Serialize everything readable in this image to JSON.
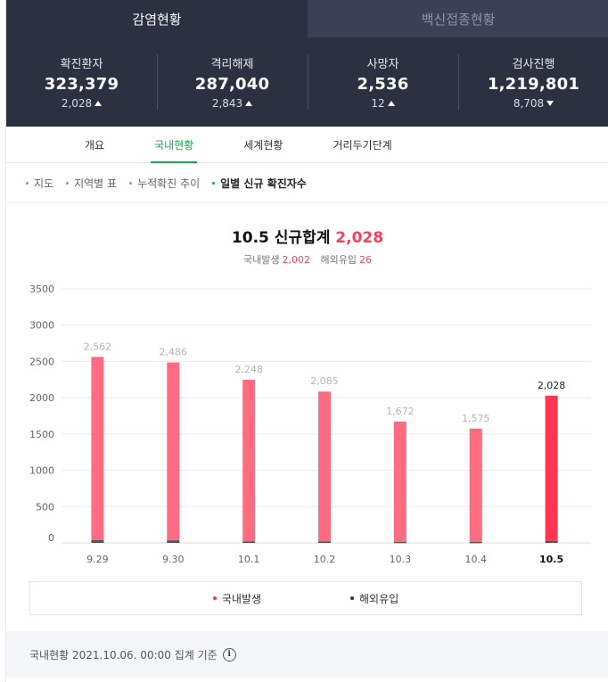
{
  "tabs": [
    {
      "label": "감염현황",
      "active": true
    },
    {
      "label": "백신접종현황",
      "active": false
    }
  ],
  "stats": [
    {
      "label": "확진환자",
      "value": "323,379",
      "change": "2,028",
      "direction": "up"
    },
    {
      "label": "격리해제",
      "value": "287,040",
      "change": "2,843",
      "direction": "up"
    },
    {
      "label": "사망자",
      "value": "2,536",
      "change": "12",
      "direction": "up"
    },
    {
      "label": "검사진행",
      "value": "1,219,801",
      "change": "8,708",
      "direction": "down"
    }
  ],
  "subtabs": [
    {
      "label": "개요",
      "active": false
    },
    {
      "label": "국내현황",
      "active": true
    },
    {
      "label": "세계현황",
      "active": false
    },
    {
      "label": "거리두기단계",
      "active": false
    }
  ],
  "filters": [
    {
      "label": "지도",
      "active": false
    },
    {
      "label": "지역별 표",
      "active": false
    },
    {
      "label": "누적확진 추이",
      "active": false
    },
    {
      "label": "일별 신규 확진자수",
      "active": true
    }
  ],
  "chart_header": {
    "date": "10.5",
    "label": "신규합계",
    "total": "2,028",
    "domestic_label": "국내발생",
    "domestic_value": "2,002",
    "overseas_label": "해외유입",
    "overseas_value": "26"
  },
  "colors": {
    "domestic": "#ff6b80",
    "domestic_highlight": "#ff3552",
    "overseas": "#555555",
    "accent_green": "#1aaa55",
    "header_bg": "#2c3141"
  },
  "chart_data": {
    "type": "bar",
    "stacked": true,
    "categories": [
      "9.29",
      "9.30",
      "10.1",
      "10.2",
      "10.3",
      "10.4",
      "10.5"
    ],
    "totals": [
      2562,
      2486,
      2248,
      2085,
      1672,
      1575,
      2028
    ],
    "total_labels": [
      "2,562",
      "2,486",
      "2,248",
      "2,085",
      "1,672",
      "1,575",
      "2,028"
    ],
    "series": [
      {
        "name": "국내발생",
        "values": [
          2524,
          2451,
          2227,
          2064,
          1657,
          1561,
          2002
        ]
      },
      {
        "name": "해외유입",
        "values": [
          38,
          35,
          21,
          21,
          15,
          14,
          26
        ]
      }
    ],
    "yticks": [
      "3500",
      "3000",
      "2500",
      "2000",
      "1500",
      "1000",
      "500",
      "0"
    ],
    "ylim": [
      0,
      3500
    ],
    "highlight_index": 6,
    "grid": true
  },
  "legend": [
    {
      "label": "국내발생",
      "color": "#ff3552"
    },
    {
      "label": "해외유입",
      "color": "#333333"
    }
  ],
  "footer": {
    "text": "국내현황 2021.10.06. 00:00 집계 기준",
    "info_icon": "info-icon"
  }
}
